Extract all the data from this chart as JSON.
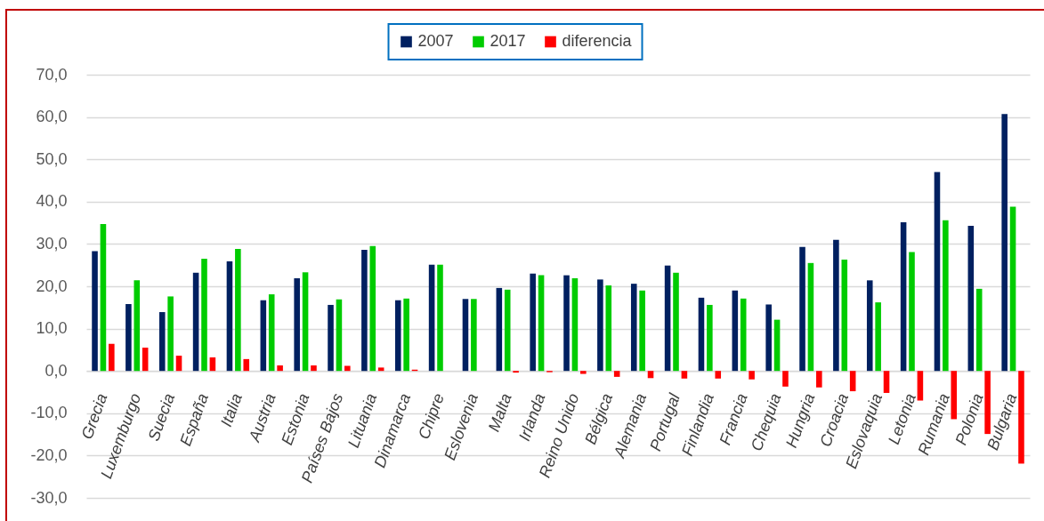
{
  "chart_data": {
    "type": "bar",
    "categories": [
      "Grecia",
      "Luxemburgo",
      "Suecia",
      "España",
      "Italia",
      "Austria",
      "Estonia",
      "Países Bajos",
      "Lituania",
      "Dinamarca",
      "Chipre",
      "Eslovenia",
      "Malta",
      "Irlanda",
      "Reino Unido",
      "Bélgica",
      "Alemania",
      "Portugal",
      "Finlandia",
      "Francia",
      "Chequia",
      "Hungria",
      "Croacia",
      "Eslovaquia",
      "Letonia",
      "Rumania",
      "Polonia",
      "Bulgaria"
    ],
    "series": [
      {
        "name": "2007",
        "color": "#002060",
        "values": [
          28.3,
          15.8,
          13.9,
          23.2,
          25.9,
          16.7,
          21.9,
          15.6,
          28.6,
          16.7,
          25.1,
          17.0,
          19.6,
          23.0,
          22.6,
          21.6,
          20.6,
          24.9,
          17.3,
          19.0,
          15.7,
          29.3,
          31.0,
          21.4,
          35.1,
          47.0,
          34.3,
          60.7
        ]
      },
      {
        "name": "2017",
        "color": "#00cc00",
        "values": [
          34.7,
          21.4,
          17.6,
          26.5,
          28.8,
          18.1,
          23.3,
          16.9,
          29.5,
          17.1,
          25.1,
          17.0,
          19.2,
          22.6,
          21.9,
          20.2,
          19.0,
          23.2,
          15.6,
          17.1,
          12.1,
          25.5,
          26.3,
          16.2,
          28.1,
          35.6,
          19.4,
          38.8
        ]
      },
      {
        "name": "diferencia",
        "color": "#ff0000",
        "values": [
          6.4,
          5.5,
          3.6,
          3.2,
          2.8,
          1.3,
          1.3,
          1.2,
          0.8,
          0.3,
          0,
          0,
          -0.4,
          -0.3,
          -0.7,
          -1.4,
          -1.7,
          -1.8,
          -1.8,
          -2.0,
          -3.7,
          -3.9,
          -4.8,
          -5.2,
          -7.0,
          -11.4,
          -14.9,
          -21.9
        ]
      }
    ],
    "ylim": [
      -30,
      70
    ],
    "yticks": [
      {
        "value": -30,
        "label": "-30,0"
      },
      {
        "value": -20,
        "label": "-20,0"
      },
      {
        "value": -10,
        "label": "-10,0"
      },
      {
        "value": 0,
        "label": "0,0"
      },
      {
        "value": 10,
        "label": "10,0"
      },
      {
        "value": 20,
        "label": "20,0"
      },
      {
        "value": 30,
        "label": "30,0"
      },
      {
        "value": 40,
        "label": "40,0"
      },
      {
        "value": 50,
        "label": "50,0"
      },
      {
        "value": 60,
        "label": "60,0"
      },
      {
        "value": 70,
        "label": "70,0"
      }
    ],
    "grid": "y",
    "legend": "top"
  }
}
